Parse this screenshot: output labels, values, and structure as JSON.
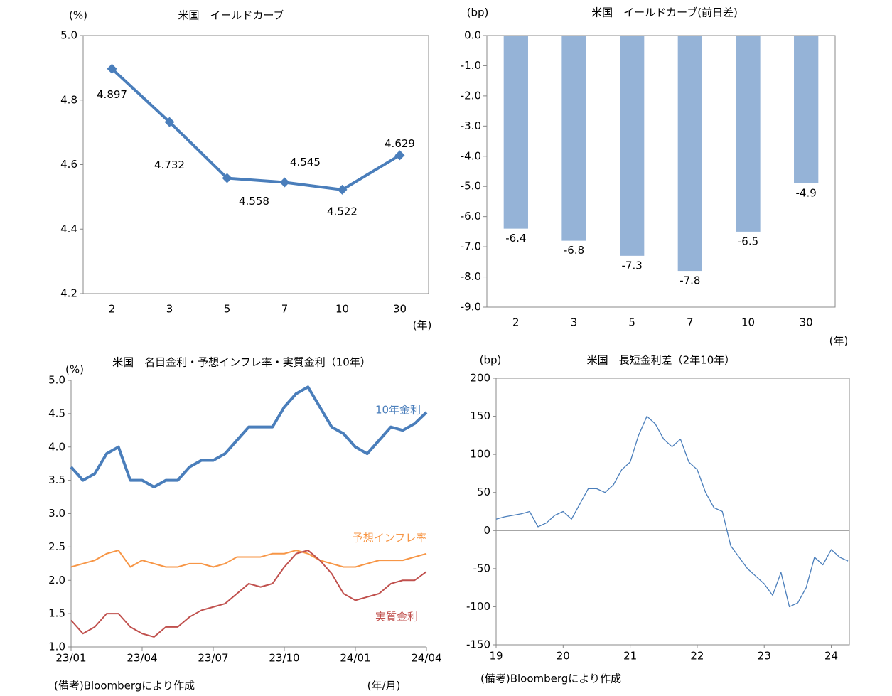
{
  "chart_data": [
    {
      "type": "line",
      "title": "米国　イールドカーブ",
      "y_label": "(%)",
      "x_label": "(年)",
      "categories": [
        "2",
        "3",
        "5",
        "7",
        "10",
        "30"
      ],
      "series": [
        {
          "name": null,
          "color": "#4a7ebb",
          "values": [
            4.897,
            4.732,
            4.558,
            4.545,
            4.522,
            4.629
          ]
        }
      ],
      "ylim": [
        4.2,
        5.0
      ],
      "yticks": [
        4.2,
        4.4,
        4.6,
        4.8,
        {
          "value": 5,
          "label": "5.0"
        }
      ],
      "grid": false,
      "value_labels_shown": true
    },
    {
      "type": "bar",
      "title": "米国　イールドカーブ(前日差)",
      "y_label": "(bp)",
      "x_label": "(年)",
      "categories": [
        "2",
        "3",
        "5",
        "7",
        "10",
        "30"
      ],
      "series": [
        {
          "name": null,
          "color": "#95b3d7",
          "values": [
            -6.4,
            -6.8,
            -7.3,
            -7.8,
            -6.5,
            -4.9
          ]
        }
      ],
      "ylim": [
        -9,
        0
      ],
      "yticks": [
        {
          "value": 0,
          "label": "0.0"
        },
        {
          "value": -1,
          "label": "-1.0"
        },
        {
          "value": -2,
          "label": "-2.0"
        },
        {
          "value": -3,
          "label": "-3.0"
        },
        {
          "value": -4,
          "label": "-4.0"
        },
        {
          "value": -5,
          "label": "-5.0"
        },
        {
          "value": -6,
          "label": "-6.0"
        },
        {
          "value": -7,
          "label": "-7.0"
        },
        {
          "value": -8,
          "label": "-8.0"
        },
        {
          "value": -9,
          "label": "-9.0"
        }
      ],
      "grid": false,
      "value_labels_shown": true
    },
    {
      "type": "line",
      "title": "米国　名目金利・予想インフレ率・実質金利（10年）",
      "y_label": "(%)",
      "x_label": "(年/月)",
      "note": "(備考)Bloombergにより作成",
      "x": [
        0,
        0.5,
        1,
        1.5,
        2,
        2.5,
        3,
        3.5,
        4,
        4.5,
        5,
        5.5,
        6,
        6.5,
        7,
        7.5,
        8,
        8.5,
        9,
        9.5,
        10,
        10.5,
        11,
        11.5,
        12,
        12.5,
        13,
        13.5,
        14,
        14.5,
        15
      ],
      "xlim": [
        0,
        15
      ],
      "xticks": [
        {
          "value": 0,
          "label": "23/01"
        },
        {
          "value": 3,
          "label": "23/04"
        },
        {
          "value": 6,
          "label": "23/07"
        },
        {
          "value": 9,
          "label": "23/10"
        },
        {
          "value": 12,
          "label": "24/01"
        },
        {
          "value": 15,
          "label": "24/04"
        }
      ],
      "series": [
        {
          "name": "10年金利",
          "color": "#4a7ebb",
          "values": [
            3.7,
            3.5,
            3.6,
            3.9,
            4.0,
            3.5,
            3.5,
            3.4,
            3.5,
            3.5,
            3.7,
            3.8,
            3.8,
            3.9,
            4.1,
            4.3,
            4.3,
            4.3,
            4.6,
            4.8,
            4.9,
            4.6,
            4.3,
            4.2,
            4.0,
            3.9,
            4.1,
            4.3,
            4.25,
            4.35,
            4.52
          ]
        },
        {
          "name": "予想インフレ率",
          "color": "#f79646",
          "values": [
            2.2,
            2.25,
            2.3,
            2.4,
            2.45,
            2.2,
            2.3,
            2.25,
            2.2,
            2.2,
            2.25,
            2.25,
            2.2,
            2.25,
            2.35,
            2.35,
            2.35,
            2.4,
            2.4,
            2.45,
            2.4,
            2.3,
            2.25,
            2.2,
            2.2,
            2.25,
            2.3,
            2.3,
            2.3,
            2.35,
            2.4
          ]
        },
        {
          "name": "実質金利",
          "color": "#c0504d",
          "values": [
            1.4,
            1.2,
            1.3,
            1.5,
            1.5,
            1.3,
            1.2,
            1.15,
            1.3,
            1.3,
            1.45,
            1.55,
            1.6,
            1.65,
            1.8,
            1.95,
            1.9,
            1.95,
            2.2,
            2.4,
            2.45,
            2.3,
            2.1,
            1.8,
            1.7,
            1.75,
            1.8,
            1.95,
            2.0,
            2.0,
            2.13
          ]
        }
      ],
      "ylim": [
        1,
        5
      ],
      "yticks": [
        {
          "value": 1,
          "label": "1.0"
        },
        1.5,
        {
          "value": 2,
          "label": "2.0"
        },
        2.5,
        {
          "value": 3,
          "label": "3.0"
        },
        3.5,
        {
          "value": 4,
          "label": "4.0"
        },
        4.5,
        {
          "value": 5,
          "label": "5.0"
        }
      ],
      "grid": false
    },
    {
      "type": "line",
      "title": "米国　長短金利差（2年10年）",
      "y_label": "(bp)",
      "note": "(備考)Bloombergにより作成",
      "x": [
        19,
        19.125,
        19.25,
        19.375,
        19.5,
        19.625,
        19.75,
        19.875,
        20,
        20.125,
        20.25,
        20.375,
        20.5,
        20.625,
        20.75,
        20.875,
        21,
        21.125,
        21.25,
        21.375,
        21.5,
        21.625,
        21.75,
        21.875,
        22,
        22.125,
        22.25,
        22.375,
        22.5,
        22.625,
        22.75,
        22.875,
        23,
        23.125,
        23.25,
        23.375,
        23.5,
        23.625,
        23.75,
        23.875,
        24,
        24.125,
        24.25
      ],
      "xlim": [
        19,
        24.27
      ],
      "xticks": [
        19,
        20,
        21,
        22,
        23,
        24
      ],
      "series": [
        {
          "name": null,
          "color": "#4a7ebb",
          "values": [
            15,
            18,
            20,
            22,
            25,
            5,
            10,
            20,
            25,
            15,
            35,
            55,
            55,
            50,
            60,
            80,
            90,
            125,
            150,
            140,
            120,
            110,
            120,
            90,
            80,
            50,
            30,
            25,
            -20,
            -35,
            -50,
            -60,
            -70,
            -85,
            -55,
            -100,
            -95,
            -75,
            -35,
            -45,
            -25,
            -35,
            -40
          ]
        }
      ],
      "ylim": [
        -150,
        200
      ],
      "yticks": [
        -150,
        -100,
        -50,
        0,
        50,
        100,
        150,
        200
      ],
      "grid": false
    }
  ]
}
